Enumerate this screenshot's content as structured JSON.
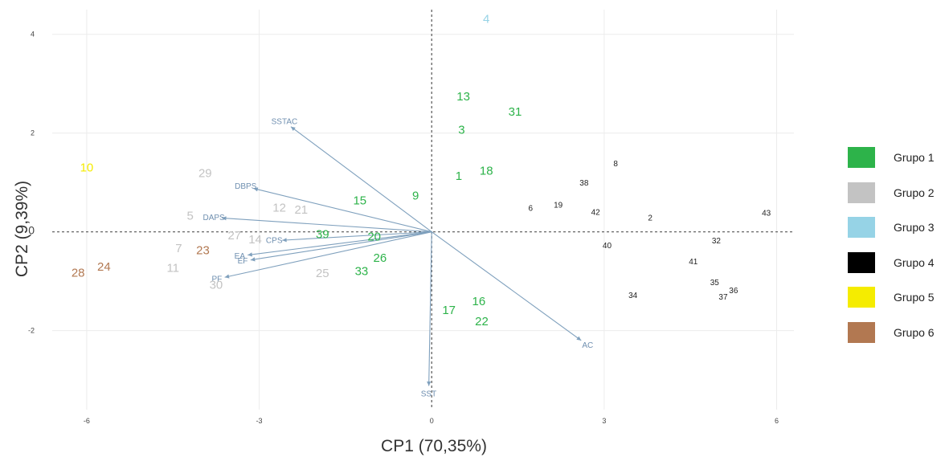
{
  "chart_data": {
    "type": "scatter",
    "subtype": "biplot",
    "xlabel": "CP1 (70,35%)",
    "ylabel": "CP2 (9,39%)",
    "xlim": [
      -6.6,
      6.3
    ],
    "ylim": [
      -3.6,
      4.5
    ],
    "xticks": [
      -6,
      -3,
      0,
      3,
      6
    ],
    "yticks": [
      -2,
      0,
      2,
      4
    ],
    "grid": true,
    "legend_position": "right",
    "groups": [
      {
        "name": "Grupo 1",
        "color": "#2db34a"
      },
      {
        "name": "Grupo 2",
        "color": "#c3c3c3"
      },
      {
        "name": "Grupo 3",
        "color": "#96d3e6"
      },
      {
        "name": "Grupo 4",
        "color": "#000000"
      },
      {
        "name": "Grupo 5",
        "color": "#f5ec00"
      },
      {
        "name": "Grupo 6",
        "color": "#b27851"
      }
    ],
    "points": [
      {
        "label": "13",
        "group": 1,
        "x": 0.55,
        "y": 2.73
      },
      {
        "label": "31",
        "group": 1,
        "x": 1.45,
        "y": 2.42
      },
      {
        "label": "3",
        "group": 1,
        "x": 0.52,
        "y": 2.05
      },
      {
        "label": "1",
        "group": 1,
        "x": 0.47,
        "y": 1.12
      },
      {
        "label": "18",
        "group": 1,
        "x": 0.95,
        "y": 1.22
      },
      {
        "label": "9",
        "group": 1,
        "x": -0.28,
        "y": 0.72
      },
      {
        "label": "15",
        "group": 1,
        "x": -1.25,
        "y": 0.62
      },
      {
        "label": "39",
        "group": 1,
        "x": -1.9,
        "y": -0.06
      },
      {
        "label": "20",
        "group": 1,
        "x": -1.0,
        "y": -0.11
      },
      {
        "label": "26",
        "group": 1,
        "x": -0.9,
        "y": -0.54
      },
      {
        "label": "33",
        "group": 1,
        "x": -1.22,
        "y": -0.81
      },
      {
        "label": "17",
        "group": 1,
        "x": 0.3,
        "y": -1.6
      },
      {
        "label": "16",
        "group": 1,
        "x": 0.82,
        "y": -1.42
      },
      {
        "label": "22",
        "group": 1,
        "x": 0.87,
        "y": -1.83
      },
      {
        "label": "29",
        "group": 2,
        "x": -3.94,
        "y": 1.17
      },
      {
        "label": "12",
        "group": 2,
        "x": -2.65,
        "y": 0.47
      },
      {
        "label": "21",
        "group": 2,
        "x": -2.27,
        "y": 0.43
      },
      {
        "label": "5",
        "group": 2,
        "x": -4.2,
        "y": 0.31
      },
      {
        "label": "27",
        "group": 2,
        "x": -3.43,
        "y": -0.09
      },
      {
        "label": "14",
        "group": 2,
        "x": -3.07,
        "y": -0.17
      },
      {
        "label": "7",
        "group": 2,
        "x": -4.4,
        "y": -0.35
      },
      {
        "label": "11",
        "group": 2,
        "x": -4.5,
        "y": -0.75
      },
      {
        "label": "30",
        "group": 2,
        "x": -3.75,
        "y": -1.09
      },
      {
        "label": "25",
        "group": 2,
        "x": -1.9,
        "y": -0.85
      },
      {
        "label": "4",
        "group": 3,
        "x": 0.95,
        "y": 4.3
      },
      {
        "label": "8",
        "group": 4,
        "x": 3.2,
        "y": 1.37
      },
      {
        "label": "38",
        "group": 4,
        "x": 2.65,
        "y": 0.98
      },
      {
        "label": "6",
        "group": 4,
        "x": 1.72,
        "y": 0.47
      },
      {
        "label": "19",
        "group": 4,
        "x": 2.2,
        "y": 0.53
      },
      {
        "label": "42",
        "group": 4,
        "x": 2.85,
        "y": 0.39
      },
      {
        "label": "2",
        "group": 4,
        "x": 3.8,
        "y": 0.27
      },
      {
        "label": "43",
        "group": 4,
        "x": 5.82,
        "y": 0.37
      },
      {
        "label": "40",
        "group": 4,
        "x": 3.05,
        "y": -0.29
      },
      {
        "label": "32",
        "group": 4,
        "x": 4.95,
        "y": -0.19
      },
      {
        "label": "41",
        "group": 4,
        "x": 4.55,
        "y": -0.61
      },
      {
        "label": "35",
        "group": 4,
        "x": 4.92,
        "y": -1.04
      },
      {
        "label": "36",
        "group": 4,
        "x": 5.25,
        "y": -1.2
      },
      {
        "label": "37",
        "group": 4,
        "x": 5.07,
        "y": -1.33
      },
      {
        "label": "34",
        "group": 4,
        "x": 3.5,
        "y": -1.3
      },
      {
        "label": "10",
        "group": 5,
        "x": -6.0,
        "y": 1.29
      },
      {
        "label": "28",
        "group": 6,
        "x": -6.15,
        "y": -0.84
      },
      {
        "label": "24",
        "group": 6,
        "x": -5.7,
        "y": -0.72
      },
      {
        "label": "23",
        "group": 6,
        "x": -3.98,
        "y": -0.39
      }
    ],
    "vectors": [
      {
        "label": "SSTAC",
        "x": -2.45,
        "y": 2.13
      },
      {
        "label": "DBPS",
        "x": -3.1,
        "y": 0.88
      },
      {
        "label": "DAPS",
        "x": -3.65,
        "y": 0.28
      },
      {
        "label": "CPS",
        "x": -2.6,
        "y": -0.17
      },
      {
        "label": "EA",
        "x": -3.2,
        "y": -0.47
      },
      {
        "label": "EF",
        "x": -3.15,
        "y": -0.57
      },
      {
        "label": "PF",
        "x": -3.6,
        "y": -0.92
      },
      {
        "label": "AC",
        "x": 2.6,
        "y": -2.2
      },
      {
        "label": "SST",
        "x": -0.05,
        "y": -3.12
      }
    ]
  }
}
